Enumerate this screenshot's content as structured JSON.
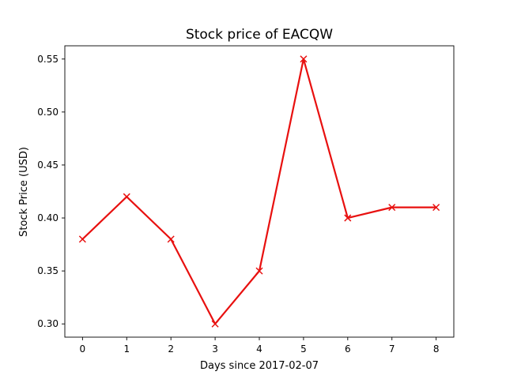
{
  "chart_data": {
    "type": "line",
    "title": "Stock price of EACQW",
    "xlabel": "Days since 2017-02-07",
    "ylabel": "Stock Price (USD)",
    "x": [
      0,
      1,
      2,
      3,
      4,
      5,
      6,
      7,
      8
    ],
    "series": [
      {
        "values": [
          0.38,
          0.42,
          0.38,
          0.3,
          0.35,
          0.55,
          0.4,
          0.41,
          0.41
        ],
        "color": "#e8100f",
        "marker": "x"
      }
    ],
    "x_ticks": [
      "0",
      "1",
      "2",
      "3",
      "4",
      "5",
      "6",
      "7",
      "8"
    ],
    "y_ticks": [
      "0.30",
      "0.35",
      "0.40",
      "0.45",
      "0.50",
      "0.55"
    ],
    "xlim": [
      -0.4,
      8.4
    ],
    "ylim": [
      0.2875,
      0.5625
    ],
    "grid": false,
    "legend": "none"
  }
}
